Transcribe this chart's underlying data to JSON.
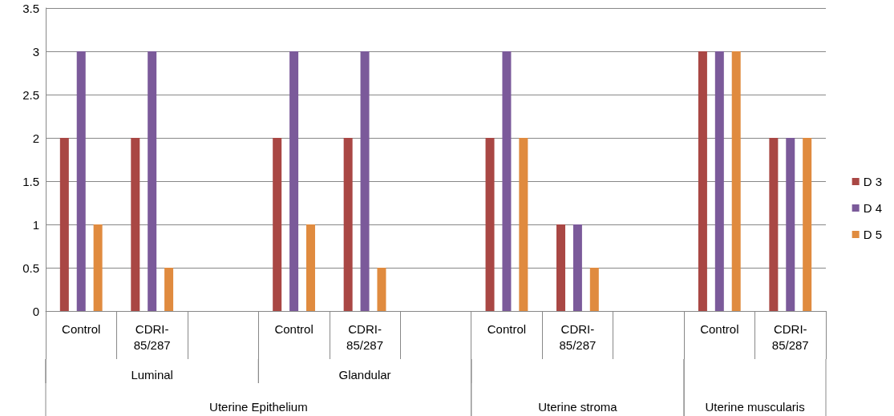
{
  "chart_data": {
    "type": "bar",
    "categories": [
      "Control",
      "CDRI-85/287",
      null,
      "Control",
      "CDRI-85/287",
      null,
      "Control",
      "CDRI-85/287",
      null,
      "Control",
      "CDRI-85/287"
    ],
    "series": [
      {
        "name": "D 3",
        "color": "#a94744",
        "values": [
          2,
          2,
          null,
          2,
          2,
          null,
          2,
          1,
          null,
          3,
          2
        ]
      },
      {
        "name": "D 4",
        "color": "#7b5a9a",
        "values": [
          3,
          3,
          null,
          3,
          3,
          null,
          3,
          1,
          null,
          3,
          2
        ]
      },
      {
        "name": "D 5",
        "color": "#e08b3f",
        "values": [
          1,
          0.5,
          null,
          1,
          0.5,
          null,
          2,
          0.5,
          null,
          3,
          2
        ]
      }
    ],
    "ylim": [
      0,
      3.5
    ],
    "yticks": [
      0,
      0.5,
      1,
      1.5,
      2,
      2.5,
      3,
      3.5
    ],
    "grid": "y",
    "legend": "right",
    "annotations": [
      "Luminal",
      "Glandular",
      "Uterine Epithelium",
      "Uterine stroma",
      "Uterine muscularis"
    ]
  }
}
